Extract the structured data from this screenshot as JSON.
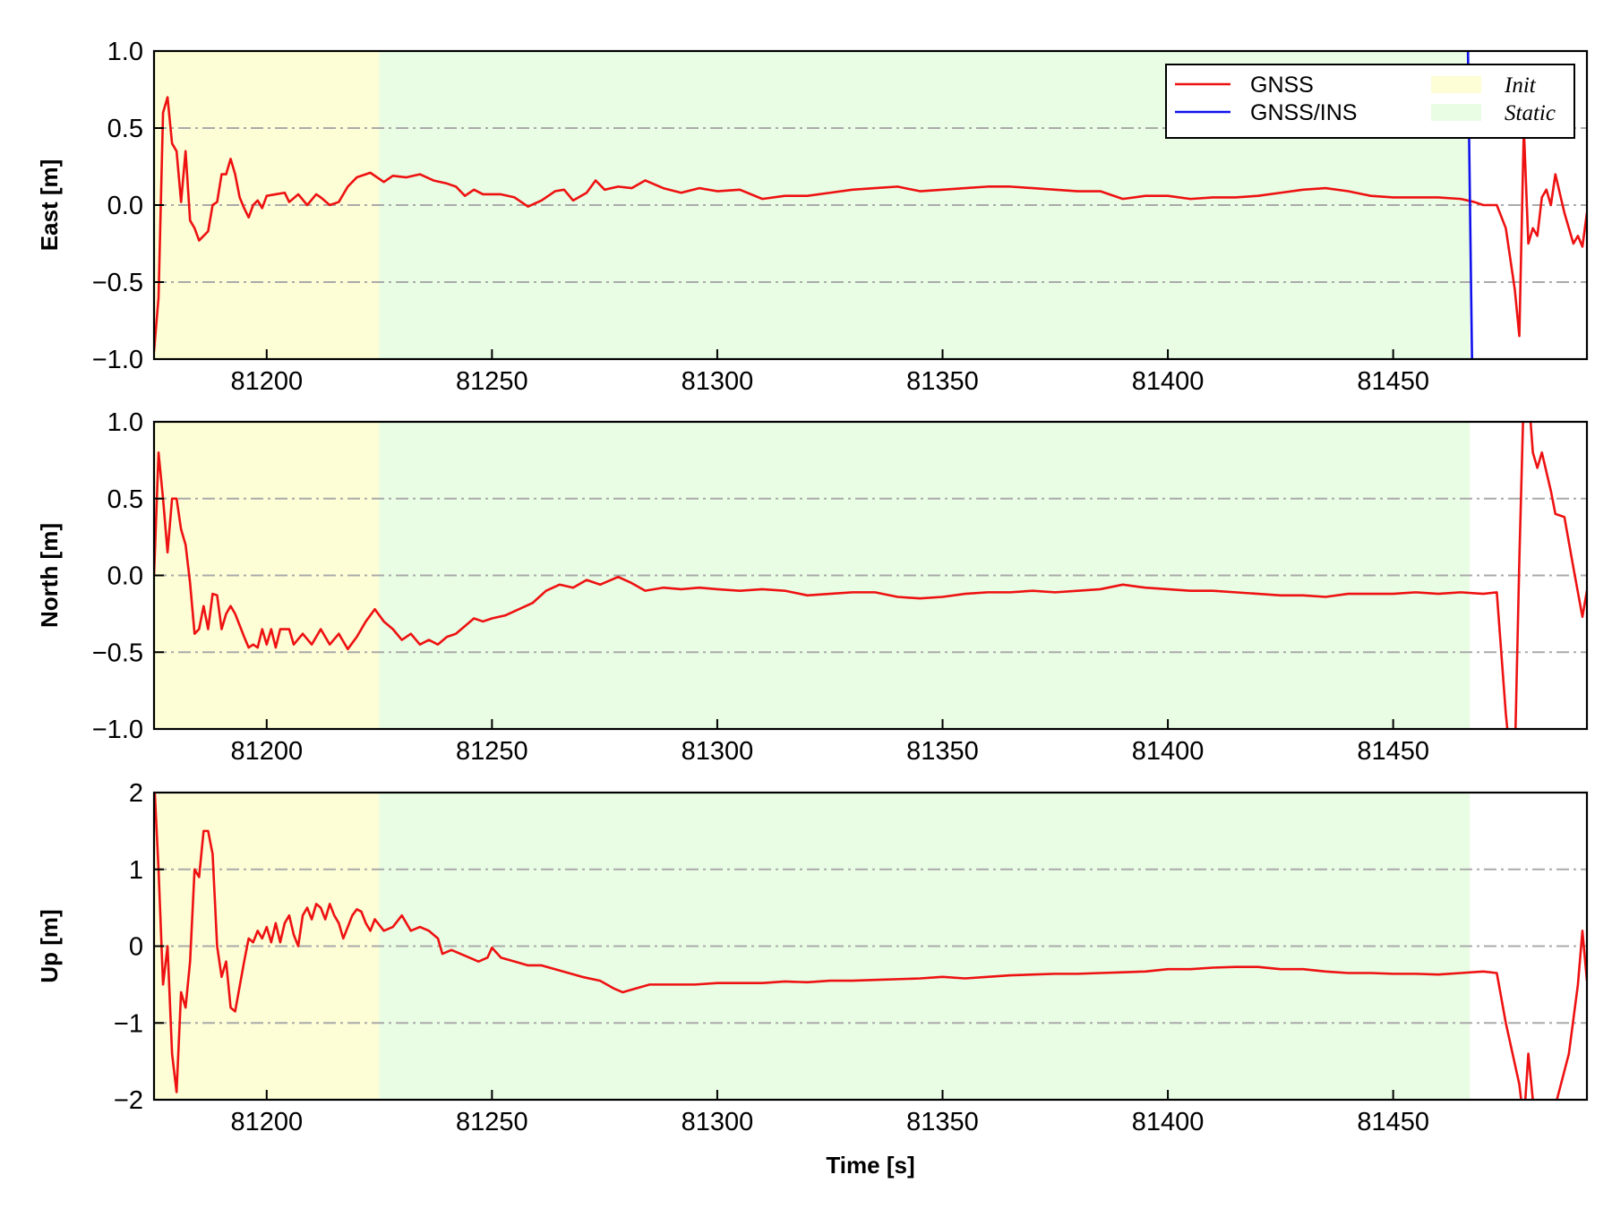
{
  "chart_data": [
    {
      "type": "line",
      "ylabel": "East [m]",
      "xlim": [
        81175,
        81493
      ],
      "xticks": [
        81200,
        81250,
        81300,
        81350,
        81400,
        81450
      ],
      "ylim": [
        -1,
        1
      ],
      "yticks": [
        {
          "value": -1,
          "label": "−1.0"
        },
        {
          "value": -0.5,
          "label": "−0.5"
        },
        {
          "value": 0,
          "label": "0.0"
        },
        0.5,
        {
          "value": 1,
          "label": "1.0"
        }
      ],
      "grid": true,
      "legend": "upper right",
      "series": [
        {
          "name": "GNSS",
          "color": "#ee1111",
          "x": [
            81175,
            81176,
            81177,
            81178,
            81179,
            81180,
            81181,
            81182,
            81183,
            81184,
            81185,
            81187,
            81188,
            81189,
            81190,
            81191,
            81192,
            81193,
            81194,
            81195,
            81196,
            81197,
            81198,
            81199,
            81200,
            81202,
            81204,
            81205,
            81207,
            81209,
            81211,
            81212,
            81214,
            81216,
            81218,
            81220,
            81223,
            81226,
            81228,
            81231,
            81234,
            81237,
            81240,
            81242,
            81244,
            81246,
            81248,
            81252,
            81255,
            81258,
            81261,
            81264,
            81266,
            81268,
            81271,
            81273,
            81275,
            81278,
            81281,
            81284,
            81288,
            81292,
            81296,
            81300,
            81305,
            81310,
            81315,
            81320,
            81325,
            81330,
            81335,
            81340,
            81345,
            81350,
            81355,
            81360,
            81365,
            81370,
            81375,
            81380,
            81385,
            81390,
            81395,
            81400,
            81405,
            81410,
            81415,
            81420,
            81425,
            81430,
            81435,
            81440,
            81445,
            81450,
            81455,
            81460,
            81465,
            81468,
            81470,
            81473,
            81475,
            81477,
            81478,
            81479,
            81480,
            81481,
            81482,
            81483,
            81484,
            81485,
            81486,
            81488,
            81490,
            81491,
            81492,
            81493
          ],
          "values": [
            -0.95,
            -0.6,
            0.6,
            0.7,
            0.4,
            0.35,
            0.02,
            0.35,
            -0.1,
            -0.15,
            -0.23,
            -0.17,
            0.0,
            0.02,
            0.2,
            0.2,
            0.3,
            0.2,
            0.05,
            -0.02,
            -0.08,
            0.0,
            0.03,
            -0.02,
            0.06,
            0.07,
            0.08,
            0.02,
            0.07,
            0.0,
            0.07,
            0.05,
            0.0,
            0.02,
            0.12,
            0.18,
            0.21,
            0.15,
            0.19,
            0.18,
            0.2,
            0.16,
            0.14,
            0.12,
            0.06,
            0.1,
            0.07,
            0.07,
            0.05,
            -0.01,
            0.03,
            0.09,
            0.1,
            0.03,
            0.08,
            0.16,
            0.1,
            0.12,
            0.11,
            0.16,
            0.11,
            0.08,
            0.11,
            0.09,
            0.1,
            0.04,
            0.06,
            0.06,
            0.08,
            0.1,
            0.11,
            0.12,
            0.09,
            0.1,
            0.11,
            0.12,
            0.12,
            0.11,
            0.1,
            0.09,
            0.09,
            0.04,
            0.06,
            0.06,
            0.04,
            0.05,
            0.05,
            0.06,
            0.08,
            0.1,
            0.11,
            0.09,
            0.06,
            0.05,
            0.05,
            0.05,
            0.04,
            0.02,
            0.0,
            0.0,
            -0.15,
            -0.55,
            -0.85,
            0.5,
            -0.25,
            -0.15,
            -0.2,
            0.05,
            0.1,
            0.0,
            0.2,
            -0.05,
            -0.25,
            -0.2,
            -0.27,
            -0.05
          ]
        },
        {
          "name": "GNSS/INS",
          "color": "#1111ee",
          "x": [
            81466.6,
            81467.5
          ],
          "values": [
            1.0,
            -1.0
          ]
        }
      ]
    },
    {
      "type": "line",
      "ylabel": "North [m]",
      "xlim": [
        81175,
        81493
      ],
      "xticks": [
        81200,
        81250,
        81300,
        81350,
        81400,
        81450
      ],
      "ylim": [
        -1,
        1
      ],
      "yticks": [
        {
          "value": -1,
          "label": "−1.0"
        },
        {
          "value": -0.5,
          "label": "−0.5"
        },
        {
          "value": 0,
          "label": "0.0"
        },
        0.5,
        {
          "value": 1,
          "label": "1.0"
        }
      ],
      "grid": true,
      "series": [
        {
          "color": "#ee1111",
          "x": [
            81175,
            81176,
            81177,
            81178,
            81179,
            81180,
            81181,
            81182,
            81183,
            81184,
            81185,
            81186,
            81187,
            81188,
            81189,
            81190,
            81191,
            81192,
            81193,
            81195,
            81196,
            81197,
            81198,
            81199,
            81200,
            81201,
            81202,
            81203,
            81205,
            81206,
            81208,
            81210,
            81212,
            81214,
            81216,
            81218,
            81220,
            81222,
            81224,
            81226,
            81228,
            81230,
            81232,
            81234,
            81236,
            81238,
            81240,
            81242,
            81244,
            81246,
            81248,
            81250,
            81253,
            81256,
            81259,
            81262,
            81265,
            81268,
            81271,
            81274,
            81278,
            81281,
            81284,
            81288,
            81292,
            81296,
            81300,
            81305,
            81310,
            81315,
            81320,
            81325,
            81330,
            81335,
            81340,
            81345,
            81350,
            81355,
            81360,
            81365,
            81370,
            81375,
            81380,
            81385,
            81390,
            81395,
            81400,
            81405,
            81410,
            81415,
            81420,
            81425,
            81430,
            81435,
            81440,
            81445,
            81450,
            81455,
            81460,
            81465,
            81470,
            81473,
            81475,
            81476,
            81477,
            81478,
            81479,
            81480,
            81481,
            81482,
            81483,
            81485,
            81486,
            81488,
            81490,
            81492,
            81493
          ],
          "values": [
            0.0,
            0.8,
            0.5,
            0.15,
            0.5,
            0.5,
            0.3,
            0.2,
            -0.05,
            -0.38,
            -0.35,
            -0.2,
            -0.35,
            -0.12,
            -0.13,
            -0.35,
            -0.25,
            -0.2,
            -0.25,
            -0.4,
            -0.47,
            -0.45,
            -0.47,
            -0.35,
            -0.45,
            -0.35,
            -0.47,
            -0.35,
            -0.35,
            -0.45,
            -0.38,
            -0.45,
            -0.35,
            -0.45,
            -0.38,
            -0.48,
            -0.4,
            -0.3,
            -0.22,
            -0.3,
            -0.35,
            -0.42,
            -0.38,
            -0.45,
            -0.42,
            -0.45,
            -0.4,
            -0.38,
            -0.33,
            -0.28,
            -0.3,
            -0.28,
            -0.26,
            -0.22,
            -0.18,
            -0.1,
            -0.06,
            -0.08,
            -0.03,
            -0.06,
            -0.01,
            -0.05,
            -0.1,
            -0.08,
            -0.09,
            -0.08,
            -0.09,
            -0.1,
            -0.09,
            -0.1,
            -0.13,
            -0.12,
            -0.11,
            -0.11,
            -0.14,
            -0.15,
            -0.14,
            -0.12,
            -0.11,
            -0.11,
            -0.1,
            -0.11,
            -0.1,
            -0.09,
            -0.06,
            -0.08,
            -0.09,
            -0.1,
            -0.1,
            -0.11,
            -0.12,
            -0.13,
            -0.13,
            -0.14,
            -0.12,
            -0.12,
            -0.12,
            -0.11,
            -0.12,
            -0.11,
            -0.12,
            -0.11,
            -0.9,
            -1.2,
            -1.2,
            0.1,
            1.2,
            1.2,
            0.8,
            0.7,
            0.8,
            0.55,
            0.4,
            0.38,
            0.05,
            -0.27,
            -0.1
          ]
        }
      ]
    },
    {
      "type": "line",
      "ylabel": "Up [m]",
      "xlabel": "Time [s]",
      "xlim": [
        81175,
        81493
      ],
      "xticks": [
        81200,
        81250,
        81300,
        81350,
        81400,
        81450
      ],
      "ylim": [
        -2,
        2
      ],
      "yticks": [
        {
          "value": -2,
          "label": "−2"
        },
        {
          "value": -1,
          "label": "−1"
        },
        0,
        1,
        2
      ],
      "grid": true,
      "series": [
        {
          "color": "#ee1111",
          "x": [
            81175,
            81176,
            81177,
            81178,
            81179,
            81180,
            81181,
            81182,
            81183,
            81184,
            81185,
            81186,
            81187,
            81188,
            81189,
            81190,
            81191,
            81192,
            81193,
            81195,
            81196,
            81197,
            81198,
            81199,
            81200,
            81201,
            81202,
            81203,
            81204,
            81205,
            81206,
            81207,
            81208,
            81209,
            81210,
            81211,
            81212,
            81213,
            81214,
            81215,
            81216,
            81217,
            81218,
            81219,
            81220,
            81221,
            81222,
            81223,
            81224,
            81226,
            81228,
            81230,
            81232,
            81234,
            81236,
            81238,
            81239,
            81241,
            81243,
            81245,
            81247,
            81249,
            81250,
            81252,
            81255,
            81258,
            81261,
            81264,
            81267,
            81270,
            81274,
            81277,
            81279,
            81282,
            81285,
            81290,
            81295,
            81300,
            81305,
            81310,
            81315,
            81320,
            81325,
            81330,
            81335,
            81340,
            81345,
            81350,
            81355,
            81360,
            81365,
            81370,
            81375,
            81380,
            81385,
            81390,
            81395,
            81400,
            81405,
            81410,
            81415,
            81420,
            81425,
            81430,
            81435,
            81440,
            81445,
            81450,
            81455,
            81460,
            81465,
            81470,
            81473,
            81475,
            81478,
            81479,
            81480,
            81481,
            81482,
            81485,
            81489,
            81491,
            81492,
            81493
          ],
          "values": [
            2.2,
            1.0,
            -0.5,
            0.0,
            -1.4,
            -1.9,
            -0.6,
            -0.8,
            -0.2,
            1.0,
            0.9,
            1.5,
            1.5,
            1.2,
            0.0,
            -0.4,
            -0.2,
            -0.8,
            -0.85,
            -0.2,
            0.1,
            0.05,
            0.2,
            0.1,
            0.25,
            0.05,
            0.3,
            0.05,
            0.3,
            0.4,
            0.15,
            0.0,
            0.4,
            0.5,
            0.35,
            0.55,
            0.5,
            0.35,
            0.55,
            0.4,
            0.3,
            0.1,
            0.25,
            0.4,
            0.48,
            0.45,
            0.3,
            0.2,
            0.35,
            0.2,
            0.25,
            0.4,
            0.2,
            0.25,
            0.2,
            0.1,
            -0.1,
            -0.05,
            -0.1,
            -0.15,
            -0.2,
            -0.15,
            -0.02,
            -0.15,
            -0.2,
            -0.25,
            -0.25,
            -0.3,
            -0.35,
            -0.4,
            -0.45,
            -0.55,
            -0.6,
            -0.55,
            -0.5,
            -0.5,
            -0.5,
            -0.48,
            -0.48,
            -0.48,
            -0.46,
            -0.47,
            -0.45,
            -0.45,
            -0.44,
            -0.43,
            -0.42,
            -0.4,
            -0.42,
            -0.4,
            -0.38,
            -0.37,
            -0.36,
            -0.36,
            -0.35,
            -0.34,
            -0.33,
            -0.3,
            -0.3,
            -0.28,
            -0.27,
            -0.27,
            -0.3,
            -0.3,
            -0.33,
            -0.35,
            -0.35,
            -0.36,
            -0.36,
            -0.37,
            -0.35,
            -0.33,
            -0.35,
            -1.0,
            -1.8,
            -2.3,
            -1.4,
            -2.0,
            -2.5,
            -2.3,
            -1.4,
            -0.5,
            0.2,
            -0.45
          ]
        }
      ]
    }
  ],
  "regions": [
    {
      "name": "Init",
      "color": "#fdfdd6",
      "x": [
        81175,
        81225
      ]
    },
    {
      "name": "Static",
      "color": "#e8fde4",
      "x": [
        81225,
        81467
      ]
    }
  ]
}
